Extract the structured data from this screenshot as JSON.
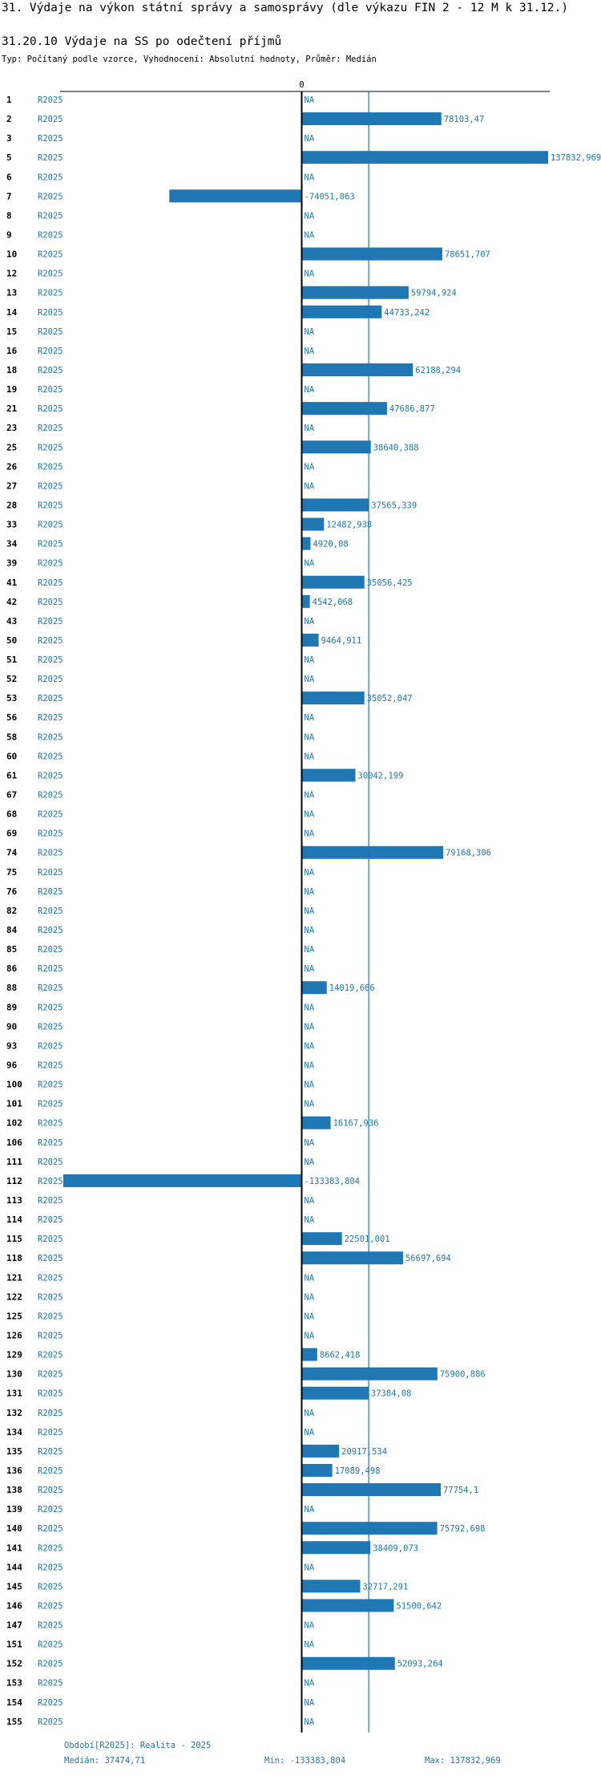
{
  "title": "31. Výdaje na výkon státní správy a samosprávy (dle výkazu FIN 2 - 12 M k 31.12.)",
  "subtitle": "31.20.10 Výdaje na SS po odečtení příjmů",
  "type_line": "Typ: Počítaný podle vzorce, Vyhodnocení: Absolutní hodnoty, Průměr: Medián",
  "footer": {
    "period": "Období[R2025]: Realita - 2025",
    "median": "Medián: 37474,71",
    "min": "Min: -133383,804",
    "max": "Max: 137832,969"
  },
  "colors": {
    "bar": "#1f77b4",
    "axis": "#000000",
    "median_line": "#1f77b4"
  },
  "chart_data": {
    "type": "bar",
    "orientation": "horizontal",
    "title": "31.20.10 Výdaje na SS po odečtení příjmů",
    "zero_label": "0",
    "series_label": "R2025",
    "median": 37474.71,
    "xlim": [
      -137500,
      137832.969
    ],
    "categories": [
      "1",
      "2",
      "3",
      "5",
      "6",
      "7",
      "8",
      "9",
      "10",
      "12",
      "13",
      "14",
      "15",
      "16",
      "18",
      "19",
      "21",
      "23",
      "25",
      "26",
      "27",
      "28",
      "33",
      "34",
      "39",
      "41",
      "42",
      "43",
      "50",
      "51",
      "52",
      "53",
      "56",
      "58",
      "60",
      "61",
      "67",
      "68",
      "69",
      "74",
      "75",
      "76",
      "82",
      "84",
      "85",
      "86",
      "88",
      "89",
      "90",
      "93",
      "96",
      "100",
      "101",
      "102",
      "106",
      "111",
      "112",
      "113",
      "114",
      "115",
      "118",
      "121",
      "122",
      "125",
      "126",
      "129",
      "130",
      "131",
      "132",
      "134",
      "135",
      "136",
      "138",
      "139",
      "140",
      "141",
      "144",
      "145",
      "146",
      "147",
      "151",
      "152",
      "153",
      "154",
      "155"
    ],
    "values": [
      null,
      78103.47,
      null,
      137832.969,
      null,
      -74051.063,
      null,
      null,
      78651.707,
      null,
      59794.924,
      44733.242,
      null,
      null,
      62188.294,
      null,
      47686.877,
      null,
      38640.388,
      null,
      null,
      37565.339,
      12482.938,
      4920.08,
      null,
      35056.425,
      4542.068,
      null,
      9464.911,
      null,
      null,
      35052.047,
      null,
      null,
      null,
      30042.199,
      null,
      null,
      null,
      79168.306,
      null,
      null,
      null,
      null,
      null,
      null,
      14019.666,
      null,
      null,
      null,
      null,
      null,
      null,
      16167.936,
      null,
      null,
      -133383.804,
      null,
      null,
      22501.001,
      56697.694,
      null,
      null,
      null,
      null,
      8662.418,
      75900.886,
      37384.08,
      null,
      null,
      20917.534,
      17089.498,
      77754.1,
      null,
      75792.698,
      38409.073,
      null,
      32717.291,
      51500.642,
      null,
      null,
      52093.264,
      null,
      null,
      null
    ],
    "value_labels": [
      "NA",
      "78103,47",
      "NA",
      "137832,969",
      "NA",
      "-74051,063",
      "NA",
      "NA",
      "78651,707",
      "NA",
      "59794,924",
      "44733,242",
      "NA",
      "NA",
      "62188,294",
      "NA",
      "47686,877",
      "NA",
      "38640,388",
      "NA",
      "NA",
      "37565,339",
      "12482,938",
      "4920,08",
      "NA",
      "35056,425",
      "4542,068",
      "NA",
      "9464,911",
      "NA",
      "NA",
      "35052,047",
      "NA",
      "NA",
      "NA",
      "30042,199",
      "NA",
      "NA",
      "NA",
      "79168,306",
      "NA",
      "NA",
      "NA",
      "NA",
      "NA",
      "NA",
      "14019,666",
      "NA",
      "NA",
      "NA",
      "NA",
      "NA",
      "NA",
      "16167,936",
      "NA",
      "NA",
      "-133383,804",
      "NA",
      "NA",
      "22501,001",
      "56697,694",
      "NA",
      "NA",
      "NA",
      "NA",
      "8662,418",
      "75900,886",
      "37384,08",
      "NA",
      "NA",
      "20917,534",
      "17089,498",
      "77754,1",
      "NA",
      "75792,698",
      "38409,073",
      "NA",
      "32717,291",
      "51500,642",
      "NA",
      "NA",
      "52093,264",
      "NA",
      "NA",
      "NA"
    ]
  }
}
